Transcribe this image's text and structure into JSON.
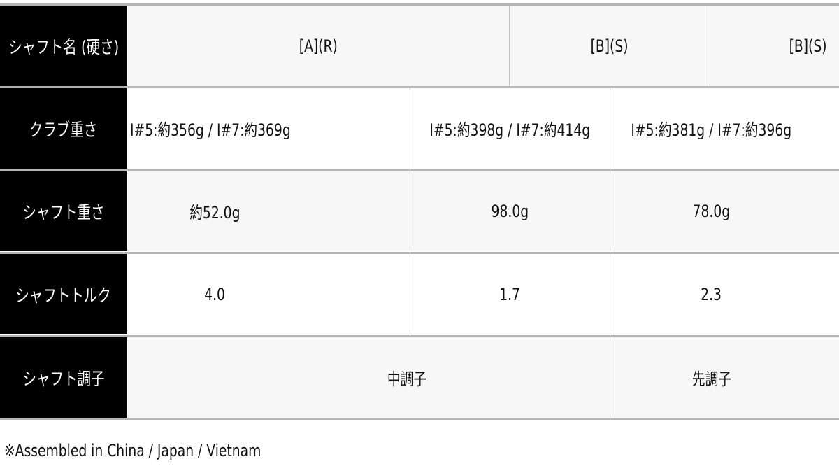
{
  "rows": [
    {
      "label": "シャフト名 (硬さ)",
      "cells": [
        "[A](R)",
        "[B](S)",
        "[B](S)"
      ]
    },
    {
      "label": "クラブ重さ",
      "cells": [
        "I#5:約356g / I#7:約369g",
        "I#5:約398g / I#7:約414g",
        "I#5:約381g / I#7:約396g"
      ]
    },
    {
      "label": "シャフト重さ",
      "cells": [
        "約52.0g",
        "98.0g",
        "78.0g"
      ]
    },
    {
      "label": "シャフトトルク",
      "cells": [
        "4.0",
        "1.7",
        "2.3"
      ]
    },
    {
      "label": "シャフト調子",
      "cells": [
        "中調子",
        "先調子"
      ]
    }
  ],
  "footnote": "※Assembled in China / Japan / Vietnam"
}
